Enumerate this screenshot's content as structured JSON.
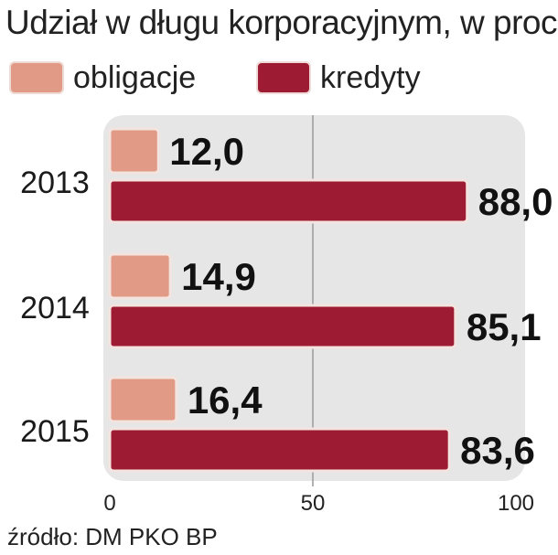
{
  "chart_data": {
    "type": "bar",
    "title": "Udział w długu korporacyjnym, w proc.",
    "categories": [
      "2013",
      "2014",
      "2015"
    ],
    "series": [
      {
        "name": "obligacje",
        "color": "#e09a86",
        "values": [
          12.0,
          14.9,
          16.4
        ],
        "labels": [
          "12,0",
          "14,9",
          "16,4"
        ]
      },
      {
        "name": "kredyty",
        "color": "#9e1c33",
        "values": [
          88.0,
          85.1,
          83.6
        ],
        "labels": [
          "88,0",
          "85,1",
          "83,6"
        ]
      }
    ],
    "xlim": [
      0,
      100
    ],
    "xticks": [
      0,
      50,
      100
    ],
    "xtick_labels": [
      "0",
      "50",
      "100"
    ],
    "grid": true,
    "legend": "top-left",
    "source": "źródło: DM PKO BP"
  }
}
